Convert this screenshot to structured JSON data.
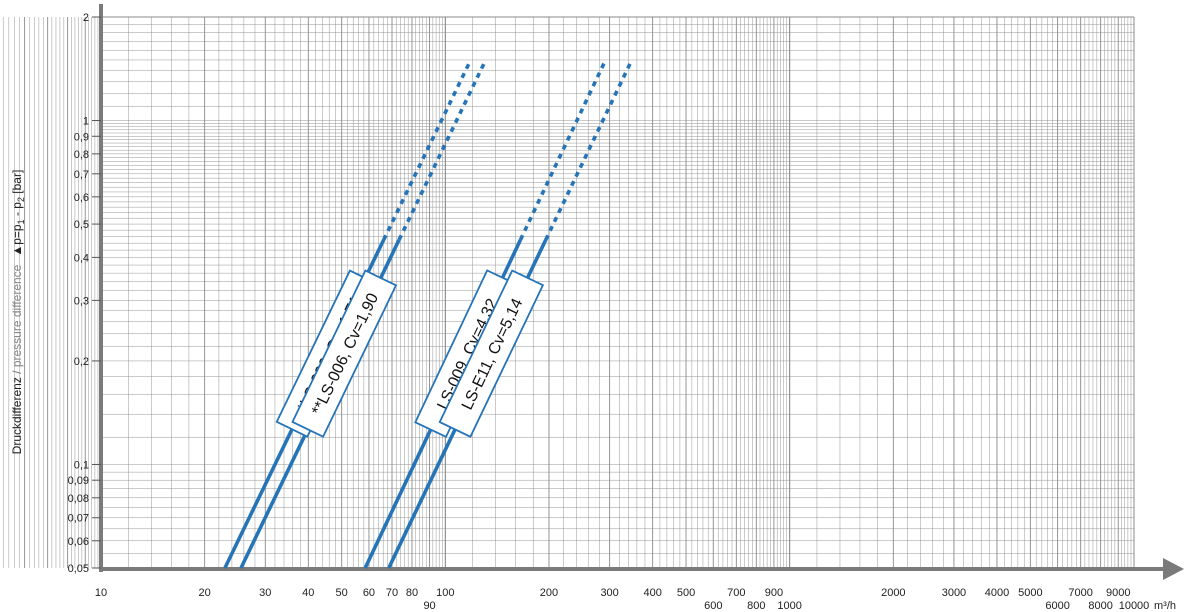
{
  "chart_data": {
    "type": "line",
    "scale": {
      "x": "log",
      "y": "log"
    },
    "grid": true,
    "xlim": [
      10,
      10000
    ],
    "ylim": [
      0.05,
      2
    ],
    "x_unit": "m³/h",
    "ylabel": {
      "german": "Druckdifferenz",
      "separator": " / ",
      "english": "pressure difference",
      "formula_prefix": "▲p=p",
      "sub1": "1",
      "formula_middle": " - p",
      "sub2": "2",
      "formula_suffix": " [bar]"
    },
    "y_ticks": [
      {
        "value": 2,
        "label": "2"
      },
      {
        "value": 1,
        "label": "1"
      },
      {
        "value": 0.9,
        "label": "0,9"
      },
      {
        "value": 0.8,
        "label": "0,8"
      },
      {
        "value": 0.7,
        "label": "0,7"
      },
      {
        "value": 0.6,
        "label": "0,6"
      },
      {
        "value": 0.5,
        "label": "0,5"
      },
      {
        "value": 0.4,
        "label": "0,4"
      },
      {
        "value": 0.3,
        "label": "0,3"
      },
      {
        "value": 0.2,
        "label": "0,2"
      },
      {
        "value": 0.1,
        "label": "0,1"
      },
      {
        "value": 0.09,
        "label": "0,09"
      },
      {
        "value": 0.08,
        "label": "0,08"
      },
      {
        "value": 0.07,
        "label": "0,07"
      },
      {
        "value": 0.06,
        "label": "0,06"
      },
      {
        "value": 0.05,
        "label": "0,05"
      }
    ],
    "x_ticks": [
      {
        "value": 10,
        "label": "10",
        "row": 1
      },
      {
        "value": 20,
        "label": "20",
        "row": 1
      },
      {
        "value": 30,
        "label": "30",
        "row": 1
      },
      {
        "value": 40,
        "label": "40",
        "row": 1
      },
      {
        "value": 50,
        "label": "50",
        "row": 1
      },
      {
        "value": 60,
        "label": "60",
        "row": 1
      },
      {
        "value": 70,
        "label": "70",
        "row": 1
      },
      {
        "value": 80,
        "label": "80",
        "row": 1
      },
      {
        "value": 90,
        "label": "90",
        "row": 2
      },
      {
        "value": 100,
        "label": "100",
        "row": 1
      },
      {
        "value": 200,
        "label": "200",
        "row": 1
      },
      {
        "value": 300,
        "label": "300",
        "row": 1
      },
      {
        "value": 400,
        "label": "400",
        "row": 1
      },
      {
        "value": 500,
        "label": "500",
        "row": 1
      },
      {
        "value": 600,
        "label": "600",
        "row": 2
      },
      {
        "value": 700,
        "label": "700",
        "row": 1
      },
      {
        "value": 800,
        "label": "800",
        "row": 2
      },
      {
        "value": 900,
        "label": "900",
        "row": 1
      },
      {
        "value": 1000,
        "label": "1000",
        "row": 2
      },
      {
        "value": 2000,
        "label": "2000",
        "row": 1
      },
      {
        "value": 3000,
        "label": "3000",
        "row": 1
      },
      {
        "value": 4000,
        "label": "4000",
        "row": 1
      },
      {
        "value": 5000,
        "label": "5000",
        "row": 1
      },
      {
        "value": 6000,
        "label": "6000",
        "row": 2
      },
      {
        "value": 7000,
        "label": "7000",
        "row": 1
      },
      {
        "value": 8000,
        "label": "8000",
        "row": 2
      },
      {
        "value": 9000,
        "label": "9000",
        "row": 1
      },
      {
        "value": 10000,
        "label": "10000",
        "row": 2
      }
    ],
    "series": [
      {
        "name": "*LS-006, Cv=1,71",
        "x": [
          22.9,
          118.5
        ],
        "y": [
          0.05,
          1.5
        ],
        "solid_until_y": 0.45
      },
      {
        "name": "**LS-006, Cv=1,90",
        "x": [
          25.5,
          131
        ],
        "y": [
          0.05,
          1.5
        ],
        "solid_until_y": 0.45
      },
      {
        "name": "LS-009, Cv=4,32",
        "x": [
          58.5,
          292
        ],
        "y": [
          0.05,
          1.5
        ],
        "solid_until_y": 0.45
      },
      {
        "name": "LS-E11, Cv=5,14",
        "x": [
          68.5,
          348
        ],
        "y": [
          0.05,
          1.5
        ],
        "solid_until_y": 0.45
      }
    ],
    "colors": {
      "line": "#2674b8",
      "label_border": "#2674b8",
      "grid": "#8a8a8a",
      "axis": "#7a7a7a"
    }
  }
}
